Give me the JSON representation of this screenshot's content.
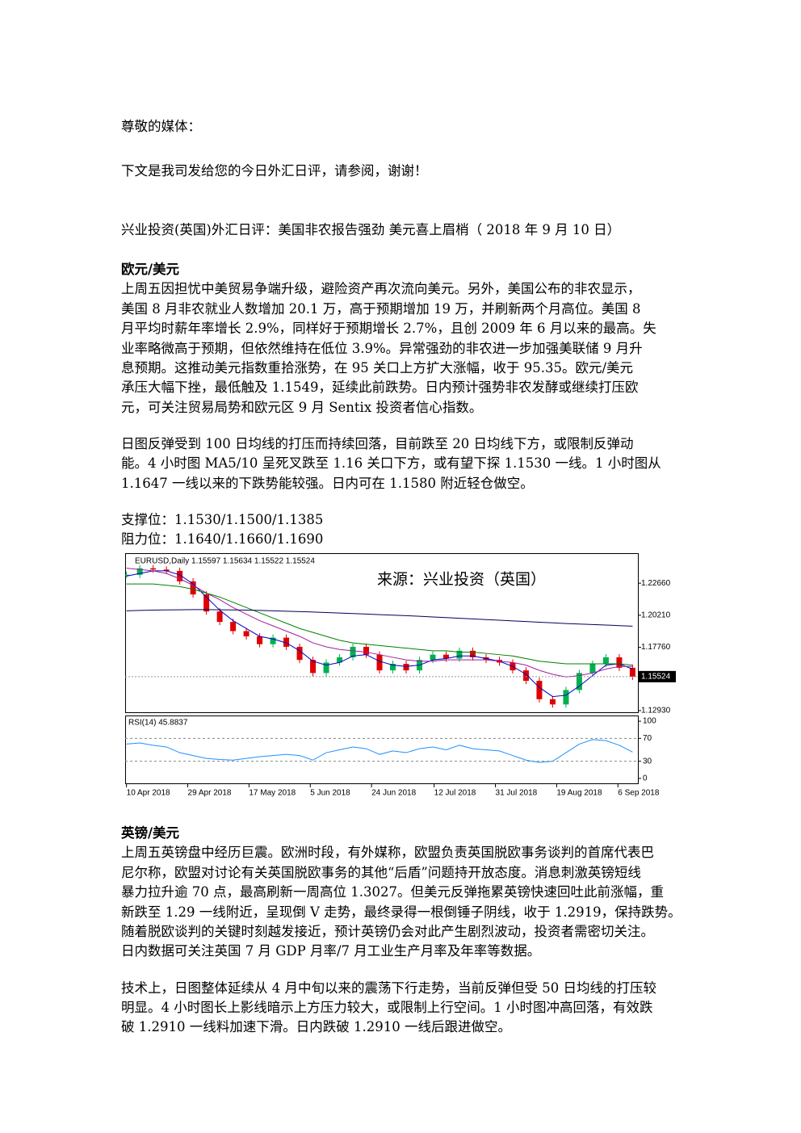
{
  "greeting": "尊敬的媒体：",
  "intro": "下文是我司发给您的今日外汇日评，请参阅，谢谢！",
  "headline": "兴业投资(英国)外汇日评：美国非农报告强劲 美元喜上眉梢（ 2018 年 9 月 10 日）",
  "sections": [
    {
      "heading": "欧元/美元",
      "paragraphs": [
        [
          "上周五因担忧中美贸易争端升级，避险资产再次流向美元。另外，美国公布的非农显示，",
          "美国 8 月非农就业人数增加 20.1 万，高于预期增加 19 万，并刷新两个月高位。美国 8",
          "月平均时薪年率增长 2.9%，同样好于预期增长 2.7%，且创 2009 年 6 月以来的最高。失",
          "业率略微高于预期，但依然维持在低位 3.9%。异常强劲的非农进一步加强美联储 9 月升",
          "息预期。这推动美元指数重拾涨势，在 95 关口上方扩大涨幅，收于 95.35。欧元/美元",
          "承压大幅下挫，最低触及 1.1549，延续此前跌势。日内预计强势非农发酵或继续打压欧",
          "元，可关注贸易局势和欧元区 9 月 Sentix 投资者信心指数。"
        ],
        [
          "日图反弹受到 100 日均线的打压而持续回落，目前跌至 20 日均线下方，或限制反弹动",
          "能。4 小时图 MA5/10 呈死叉跌至 1.16 关口下方，或有望下探 1.1530 一线。1 小时图从",
          "1.1647 一线以来的下跌势能较强。日内可在 1.1580 附近轻仓做空。"
        ]
      ],
      "levels": [
        "支撑位：1.1530/1.1500/1.1385",
        "阻力位：1.1640/1.1660/1.1690"
      ]
    },
    {
      "heading": "英镑/美元",
      "paragraphs": [
        [
          "上周五英镑盘中经历巨震。欧洲时段，有外媒称，欧盟负责英国脱欧事务谈判的首席代表巴",
          "尼尔称，欧盟对讨论有关英国脱欧事务的其他“后盾”问题持开放态度。消息刺激英镑短线",
          "暴力拉升逾 70 点，最高刷新一周高位 1.3027。但美元反弹拖累英镑快速回吐此前涨幅，重",
          "新跌至 1.29 一线附近，呈现倒 V 走势，最终录得一根倒锤子阴线，收于 1.2919，保持跌势。",
          "随着脱欧谈判的关键时刻越发接近，预计英镑仍会对此产生剧烈波动，投资者需密切关注。",
          "日内数据可关注英国 7 月 GDP 月率/7 月工业生产月率及年率等数据。"
        ],
        [
          "技术上，日图整体延续从 4 月中旬以来的震荡下行走势，当前反弹但受 50 日均线的打压较",
          "明显。4 小时图长上影线暗示上方压力较大，或限制上行空间。1 小时图冲高回落，有效跌",
          "破 1.2910 一线料加速下滑。日内跌破 1.2910 一线后跟进做空。"
        ]
      ]
    }
  ],
  "chart_data": {
    "type": "candlestick",
    "label": "EURUSD,Daily  1.15597 1.15634 1.15522 1.15524",
    "watermark": "来源：兴业投资（英国）",
    "x": [
      0,
      1,
      2,
      3,
      4,
      5,
      6,
      7,
      8,
      9,
      10,
      11,
      12,
      13,
      14,
      15,
      16,
      17,
      18,
      19,
      20,
      21,
      22,
      23,
      24,
      25,
      26,
      27,
      28,
      29,
      30,
      31,
      32,
      33,
      34,
      35,
      36,
      37,
      38
    ],
    "xlim": [
      -0.1,
      38.4
    ],
    "xticks": [
      {
        "value": 0,
        "label": "10 Apr 2018"
      },
      {
        "value": 4.6,
        "label": "29 Apr 2018"
      },
      {
        "value": 9.2,
        "label": "17 May 2018"
      },
      {
        "value": 13.8,
        "label": "5 Jun 2018"
      },
      {
        "value": 18.4,
        "label": "24 Jun 2018"
      },
      {
        "value": 23.1,
        "label": "12 Jul 2018"
      },
      {
        "value": 27.7,
        "label": "31 Jul 2018"
      },
      {
        "value": 32.3,
        "label": "19 Aug 2018"
      },
      {
        "value": 36.9,
        "label": "6 Sep 2018"
      }
    ],
    "ylim": [
      1.1274,
      1.2489
    ],
    "yticks": [
      {
        "value": 1.2266,
        "label": "1.22660"
      },
      {
        "value": 1.2021,
        "label": "1.20210"
      },
      {
        "value": 1.1776,
        "label": "1.17760"
      },
      {
        "value": 1.1293,
        "label": "1.12930"
      }
    ],
    "last_price": 1.15524,
    "up_color": "#00b050",
    "down_color": "#e00000",
    "series": [
      {
        "style": "candlestick",
        "values": [
          1.233,
          1.238,
          1.237,
          1.236,
          1.228,
          1.218,
          1.205,
          1.197,
          1.19,
          1.186,
          1.18,
          1.185,
          1.178,
          1.168,
          1.158,
          1.166,
          1.17,
          1.178,
          1.172,
          1.16,
          1.165,
          1.16,
          1.168,
          1.172,
          1.169,
          1.175,
          1.17,
          1.168,
          1.166,
          1.16,
          1.152,
          1.138,
          1.134,
          1.145,
          1.158,
          1.165,
          1.17,
          1.162,
          1.1552
        ]
      },
      {
        "style": "line",
        "color": "#0000c0",
        "values": [
          1.232,
          1.234,
          1.236,
          1.236,
          1.233,
          1.226,
          1.216,
          1.206,
          1.198,
          1.192,
          1.186,
          1.184,
          1.181,
          1.175,
          1.167,
          1.164,
          1.166,
          1.171,
          1.172,
          1.167,
          1.164,
          1.163,
          1.164,
          1.168,
          1.169,
          1.171,
          1.171,
          1.169,
          1.167,
          1.163,
          1.157,
          1.147,
          1.14,
          1.141,
          1.148,
          1.156,
          1.164,
          1.165,
          1.161
        ]
      },
      {
        "style": "line",
        "color": "#a020a0",
        "values": [
          1.238,
          1.237,
          1.236,
          1.234,
          1.23,
          1.225,
          1.219,
          1.214,
          1.208,
          1.203,
          1.198,
          1.194,
          1.19,
          1.186,
          1.181,
          1.178,
          1.176,
          1.175,
          1.174,
          1.172,
          1.17,
          1.168,
          1.167,
          1.167,
          1.168,
          1.168,
          1.168,
          1.168,
          1.167,
          1.166,
          1.164,
          1.16,
          1.157,
          1.155,
          1.156,
          1.158,
          1.161,
          1.163,
          1.163
        ]
      },
      {
        "style": "line",
        "color": "#008000",
        "values": [
          1.226,
          1.226,
          1.226,
          1.225,
          1.224,
          1.222,
          1.219,
          1.216,
          1.212,
          1.208,
          1.204,
          1.2,
          1.196,
          1.192,
          1.189,
          1.186,
          1.183,
          1.181,
          1.18,
          1.179,
          1.178,
          1.177,
          1.176,
          1.175,
          1.175,
          1.174,
          1.174,
          1.173,
          1.172,
          1.171,
          1.169,
          1.167,
          1.166,
          1.165,
          1.165,
          1.165,
          1.165,
          1.165,
          1.164
        ]
      },
      {
        "style": "line",
        "color": "#000060",
        "values": [
          1.2055,
          1.2058,
          1.206,
          1.2062,
          1.2063,
          1.2064,
          1.2064,
          1.2063,
          1.2062,
          1.206,
          1.2058,
          1.2055,
          1.2052,
          1.2049,
          1.2046,
          1.2042,
          1.2038,
          1.2034,
          1.203,
          1.2026,
          1.2022,
          1.2018,
          1.2013,
          1.2008,
          1.2003,
          1.1998,
          1.1993,
          1.1988,
          1.1983,
          1.1978,
          1.1973,
          1.1968,
          1.1963,
          1.1958,
          1.1954,
          1.195,
          1.1946,
          1.1942,
          1.1938
        ]
      }
    ],
    "rsi": {
      "label": "RSI(14) 45.8837",
      "color": "#1e90ff",
      "ylim": [
        -10,
        110
      ],
      "yticks": [
        100,
        70,
        30,
        0
      ],
      "levels": [
        70,
        30
      ],
      "values": [
        60,
        62,
        58,
        55,
        45,
        40,
        35,
        33,
        32,
        35,
        38,
        40,
        42,
        40,
        32,
        45,
        50,
        55,
        52,
        42,
        48,
        45,
        52,
        55,
        50,
        58,
        52,
        50,
        48,
        40,
        32,
        28,
        30,
        45,
        60,
        68,
        66,
        58,
        46
      ]
    }
  }
}
